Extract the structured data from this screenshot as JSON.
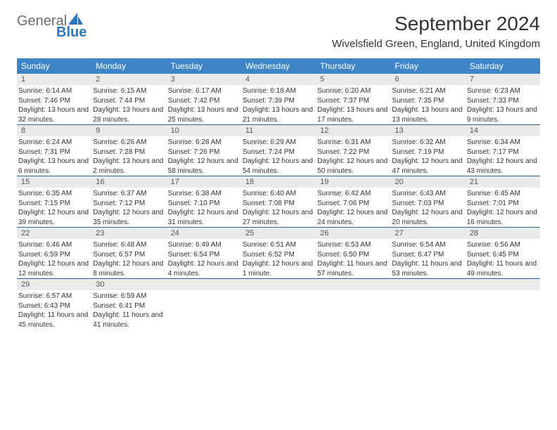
{
  "brand": {
    "part1": "General",
    "part2": "Blue",
    "color1": "#6d6d6d",
    "color2": "#2f77b9",
    "sail_color": "#2f77b9"
  },
  "title": "September 2024",
  "location": "Wivelsfield Green, England, United Kingdom",
  "header_bg": "#3d85c6",
  "row_border": "#2f6699",
  "daynum_bg": "#eaeaea",
  "days": [
    "Sunday",
    "Monday",
    "Tuesday",
    "Wednesday",
    "Thursday",
    "Friday",
    "Saturday"
  ],
  "weeks": [
    [
      {
        "n": "1",
        "sr": "6:14 AM",
        "ss": "7:46 PM",
        "dl": "13 hours and 32 minutes."
      },
      {
        "n": "2",
        "sr": "6:15 AM",
        "ss": "7:44 PM",
        "dl": "13 hours and 28 minutes."
      },
      {
        "n": "3",
        "sr": "6:17 AM",
        "ss": "7:42 PM",
        "dl": "13 hours and 25 minutes."
      },
      {
        "n": "4",
        "sr": "6:18 AM",
        "ss": "7:39 PM",
        "dl": "13 hours and 21 minutes."
      },
      {
        "n": "5",
        "sr": "6:20 AM",
        "ss": "7:37 PM",
        "dl": "13 hours and 17 minutes."
      },
      {
        "n": "6",
        "sr": "6:21 AM",
        "ss": "7:35 PM",
        "dl": "13 hours and 13 minutes."
      },
      {
        "n": "7",
        "sr": "6:23 AM",
        "ss": "7:33 PM",
        "dl": "13 hours and 9 minutes."
      }
    ],
    [
      {
        "n": "8",
        "sr": "6:24 AM",
        "ss": "7:31 PM",
        "dl": "13 hours and 6 minutes."
      },
      {
        "n": "9",
        "sr": "6:26 AM",
        "ss": "7:28 PM",
        "dl": "13 hours and 2 minutes."
      },
      {
        "n": "10",
        "sr": "6:28 AM",
        "ss": "7:26 PM",
        "dl": "12 hours and 58 minutes."
      },
      {
        "n": "11",
        "sr": "6:29 AM",
        "ss": "7:24 PM",
        "dl": "12 hours and 54 minutes."
      },
      {
        "n": "12",
        "sr": "6:31 AM",
        "ss": "7:22 PM",
        "dl": "12 hours and 50 minutes."
      },
      {
        "n": "13",
        "sr": "6:32 AM",
        "ss": "7:19 PM",
        "dl": "12 hours and 47 minutes."
      },
      {
        "n": "14",
        "sr": "6:34 AM",
        "ss": "7:17 PM",
        "dl": "12 hours and 43 minutes."
      }
    ],
    [
      {
        "n": "15",
        "sr": "6:35 AM",
        "ss": "7:15 PM",
        "dl": "12 hours and 39 minutes."
      },
      {
        "n": "16",
        "sr": "6:37 AM",
        "ss": "7:12 PM",
        "dl": "12 hours and 35 minutes."
      },
      {
        "n": "17",
        "sr": "6:38 AM",
        "ss": "7:10 PM",
        "dl": "12 hours and 31 minutes."
      },
      {
        "n": "18",
        "sr": "6:40 AM",
        "ss": "7:08 PM",
        "dl": "12 hours and 27 minutes."
      },
      {
        "n": "19",
        "sr": "6:42 AM",
        "ss": "7:06 PM",
        "dl": "12 hours and 24 minutes."
      },
      {
        "n": "20",
        "sr": "6:43 AM",
        "ss": "7:03 PM",
        "dl": "12 hours and 20 minutes."
      },
      {
        "n": "21",
        "sr": "6:45 AM",
        "ss": "7:01 PM",
        "dl": "12 hours and 16 minutes."
      }
    ],
    [
      {
        "n": "22",
        "sr": "6:46 AM",
        "ss": "6:59 PM",
        "dl": "12 hours and 12 minutes."
      },
      {
        "n": "23",
        "sr": "6:48 AM",
        "ss": "6:57 PM",
        "dl": "12 hours and 8 minutes."
      },
      {
        "n": "24",
        "sr": "6:49 AM",
        "ss": "6:54 PM",
        "dl": "12 hours and 4 minutes."
      },
      {
        "n": "25",
        "sr": "6:51 AM",
        "ss": "6:52 PM",
        "dl": "12 hours and 1 minute."
      },
      {
        "n": "26",
        "sr": "6:53 AM",
        "ss": "6:50 PM",
        "dl": "11 hours and 57 minutes."
      },
      {
        "n": "27",
        "sr": "6:54 AM",
        "ss": "6:47 PM",
        "dl": "11 hours and 53 minutes."
      },
      {
        "n": "28",
        "sr": "6:56 AM",
        "ss": "6:45 PM",
        "dl": "11 hours and 49 minutes."
      }
    ],
    [
      {
        "n": "29",
        "sr": "6:57 AM",
        "ss": "6:43 PM",
        "dl": "11 hours and 45 minutes."
      },
      {
        "n": "30",
        "sr": "6:59 AM",
        "ss": "6:41 PM",
        "dl": "11 hours and 41 minutes."
      },
      null,
      null,
      null,
      null,
      null
    ]
  ],
  "labels": {
    "sunrise": "Sunrise:",
    "sunset": "Sunset:",
    "daylight": "Daylight:"
  }
}
